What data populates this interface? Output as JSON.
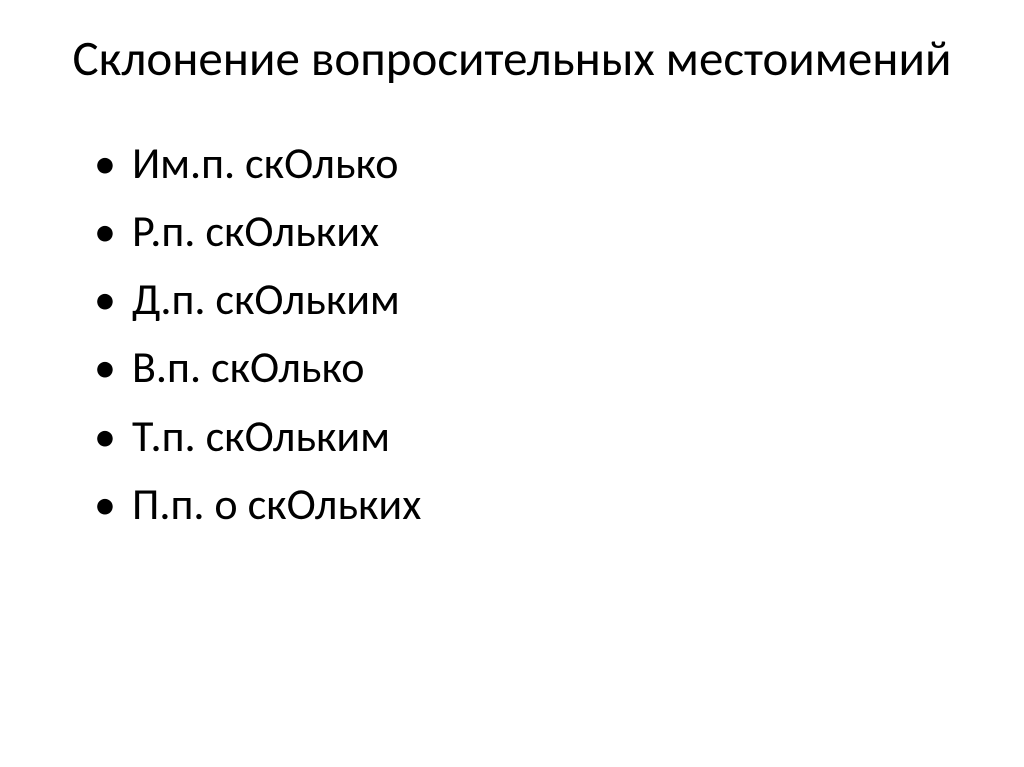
{
  "title": "Склонение вопросительных местоимений",
  "title_fontsize": 49,
  "list_fontsize": 44,
  "text_color": "#000000",
  "background_color": "#ffffff",
  "bullet_color": "#000000",
  "items": [
    "Им.п.  скОлько",
    "Р.п.  скОльких",
    "Д.п. скОльким",
    "В.п. скОлько",
    "Т.п. скОльким",
    "П.п. о скОльких"
  ]
}
